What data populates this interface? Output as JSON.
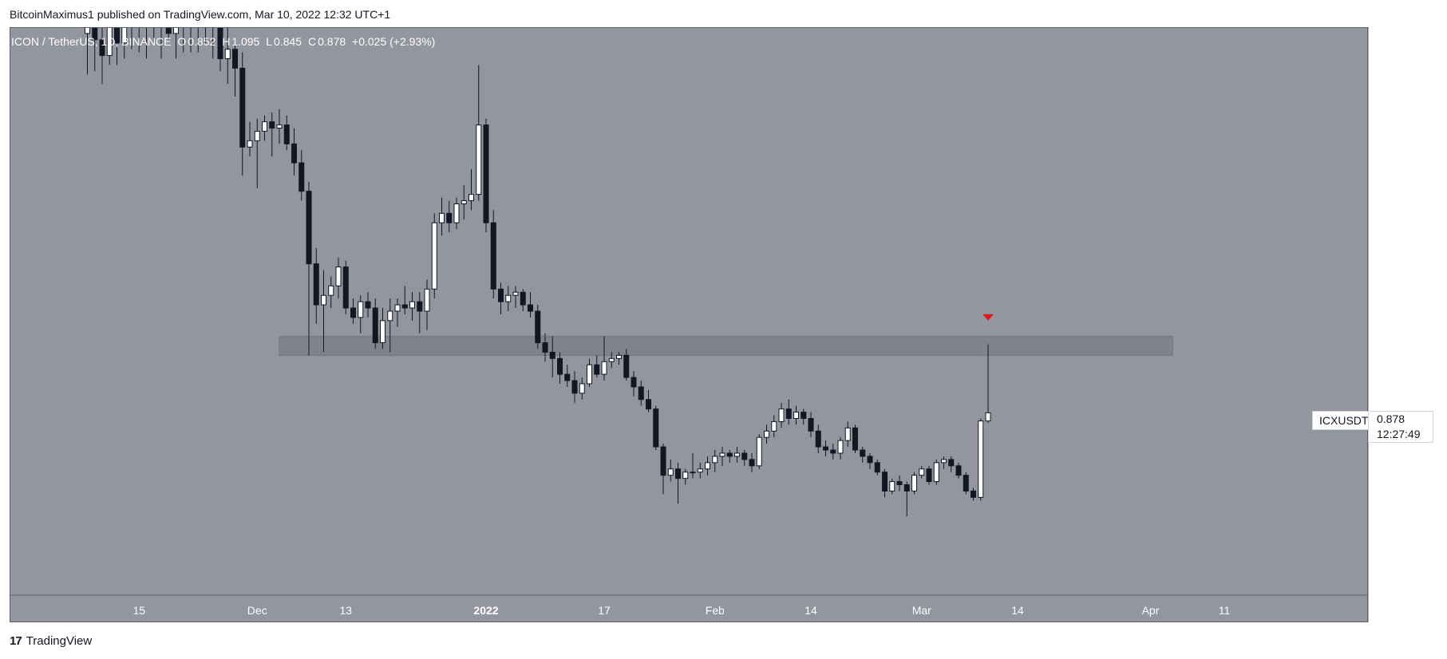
{
  "header": {
    "publisher_line": "BitcoinMaximus1 published on TradingView.com, Mar 10, 2022 12:32 UTC+1"
  },
  "ohlc": {
    "symbol_text": "ICON / TetherUS, 1D, BINANCE",
    "o_label": "O",
    "o": "0.852",
    "h_label": "H",
    "h": "1.095",
    "l_label": "L",
    "l": "0.845",
    "c_label": "C",
    "c": "0.878",
    "change": "+0.025 (+2.93%)"
  },
  "axis": {
    "unit": "USDT"
  },
  "last_price": {
    "symbol": "ICXUSDT",
    "price": "0.878",
    "countdown": "12:27:49"
  },
  "footer": {
    "brand": "TradingView",
    "logo_glyph": "17"
  },
  "colors": {
    "background": "#93959f",
    "up_candle": "#ffffff",
    "down_candle": "#131722",
    "zone": "#808289",
    "arrow": "#e01818"
  },
  "chart_data": {
    "type": "candlestick",
    "title": "ICON / TetherUS, 1D, BINANCE",
    "ylim": [
      0.3,
      2.1
    ],
    "y_ticks": [
      0.4,
      0.5,
      0.6,
      0.7,
      0.8,
      0.9,
      1.0,
      1.1,
      1.2,
      1.3,
      1.4,
      1.5,
      1.6,
      1.7,
      1.8,
      1.9,
      2.0,
      2.1
    ],
    "x_tick_labels": [
      {
        "label": "15",
        "date": "2021-11-15"
      },
      {
        "label": "Dec",
        "date": "2021-12-01"
      },
      {
        "label": "13",
        "date": "2021-12-13"
      },
      {
        "label": "2022",
        "date": "2022-01-01"
      },
      {
        "label": "17",
        "date": "2022-01-17"
      },
      {
        "label": "Feb",
        "date": "2022-02-01"
      },
      {
        "label": "14",
        "date": "2022-02-14"
      },
      {
        "label": "Mar",
        "date": "2022-03-01"
      },
      {
        "label": "14",
        "date": "2022-03-14"
      },
      {
        "label": "Apr",
        "date": "2022-04-01"
      },
      {
        "label": "11",
        "date": "2022-04-11"
      }
    ],
    "resistance_zone": {
      "low": 1.06,
      "high": 1.12,
      "start": "2021-12-04",
      "end": "2022-04-04"
    },
    "markers": [
      {
        "type": "down-arrow",
        "date": "2022-03-10",
        "price": 1.18
      }
    ],
    "candles": [
      {
        "d": "2021-11-08",
        "o": 2.08,
        "h": 2.18,
        "l": 1.95,
        "c": 2.1
      },
      {
        "d": "2021-11-09",
        "o": 2.1,
        "h": 2.16,
        "l": 1.96,
        "c": 2.06
      },
      {
        "d": "2021-11-10",
        "o": 2.06,
        "h": 2.14,
        "l": 1.92,
        "c": 2.01
      },
      {
        "d": "2021-11-11",
        "o": 2.01,
        "h": 2.18,
        "l": 1.98,
        "c": 2.12
      },
      {
        "d": "2021-11-12",
        "o": 2.12,
        "h": 2.16,
        "l": 1.98,
        "c": 2.05
      },
      {
        "d": "2021-11-13",
        "o": 2.05,
        "h": 2.15,
        "l": 2.0,
        "c": 2.11
      },
      {
        "d": "2021-11-14",
        "o": 2.11,
        "h": 2.17,
        "l": 2.03,
        "c": 2.15
      },
      {
        "d": "2021-11-15",
        "o": 2.15,
        "h": 2.19,
        "l": 2.02,
        "c": 2.16
      },
      {
        "d": "2021-11-16",
        "o": 2.16,
        "h": 2.18,
        "l": 2.0,
        "c": 2.17
      },
      {
        "d": "2021-11-17",
        "o": 2.17,
        "h": 2.19,
        "l": 2.05,
        "c": 2.16
      },
      {
        "d": "2021-11-18",
        "o": 2.16,
        "h": 2.18,
        "l": 2.0,
        "c": 2.17
      },
      {
        "d": "2021-11-19",
        "o": 2.17,
        "h": 2.19,
        "l": 2.06,
        "c": 2.08
      },
      {
        "d": "2021-11-20",
        "o": 2.08,
        "h": 2.16,
        "l": 2.0,
        "c": 2.12
      },
      {
        "d": "2021-11-21",
        "o": 2.12,
        "h": 2.18,
        "l": 2.02,
        "c": 2.16
      },
      {
        "d": "2021-11-22",
        "o": 2.16,
        "h": 2.18,
        "l": 2.02,
        "c": 2.16
      },
      {
        "d": "2021-11-23",
        "o": 2.16,
        "h": 2.18,
        "l": 2.02,
        "c": 2.17
      },
      {
        "d": "2021-11-24",
        "o": 2.17,
        "h": 2.19,
        "l": 2.05,
        "c": 2.16
      },
      {
        "d": "2021-11-25",
        "o": 2.16,
        "h": 2.18,
        "l": 2.0,
        "c": 2.1
      },
      {
        "d": "2021-11-26",
        "o": 2.1,
        "h": 2.14,
        "l": 1.96,
        "c": 2.0
      },
      {
        "d": "2021-11-27",
        "o": 2.0,
        "h": 2.1,
        "l": 1.92,
        "c": 2.03
      },
      {
        "d": "2021-11-28",
        "o": 2.03,
        "h": 2.06,
        "l": 1.88,
        "c": 1.97
      },
      {
        "d": "2021-11-29",
        "o": 1.97,
        "h": 2.02,
        "l": 1.63,
        "c": 1.72
      },
      {
        "d": "2021-11-30",
        "o": 1.72,
        "h": 1.8,
        "l": 1.69,
        "c": 1.74
      },
      {
        "d": "2021-12-01",
        "o": 1.74,
        "h": 1.81,
        "l": 1.59,
        "c": 1.77
      },
      {
        "d": "2021-12-02",
        "o": 1.77,
        "h": 1.82,
        "l": 1.74,
        "c": 1.8
      },
      {
        "d": "2021-12-03",
        "o": 1.8,
        "h": 1.83,
        "l": 1.69,
        "c": 1.78
      },
      {
        "d": "2021-12-04",
        "o": 1.78,
        "h": 1.84,
        "l": 1.73,
        "c": 1.79
      },
      {
        "d": "2021-12-05",
        "o": 1.79,
        "h": 1.82,
        "l": 1.71,
        "c": 1.73
      },
      {
        "d": "2021-12-06",
        "o": 1.73,
        "h": 1.78,
        "l": 1.63,
        "c": 1.67
      },
      {
        "d": "2021-12-07",
        "o": 1.67,
        "h": 1.71,
        "l": 1.55,
        "c": 1.58
      },
      {
        "d": "2021-12-08",
        "o": 1.58,
        "h": 1.61,
        "l": 1.06,
        "c": 1.35
      },
      {
        "d": "2021-12-09",
        "o": 1.35,
        "h": 1.4,
        "l": 1.16,
        "c": 1.22
      },
      {
        "d": "2021-12-10",
        "o": 1.22,
        "h": 1.33,
        "l": 1.07,
        "c": 1.25
      },
      {
        "d": "2021-12-11",
        "o": 1.25,
        "h": 1.31,
        "l": 1.21,
        "c": 1.28
      },
      {
        "d": "2021-12-12",
        "o": 1.28,
        "h": 1.37,
        "l": 1.24,
        "c": 1.34
      },
      {
        "d": "2021-12-13",
        "o": 1.34,
        "h": 1.36,
        "l": 1.19,
        "c": 1.21
      },
      {
        "d": "2021-12-14",
        "o": 1.21,
        "h": 1.24,
        "l": 1.16,
        "c": 1.18
      },
      {
        "d": "2021-12-15",
        "o": 1.18,
        "h": 1.25,
        "l": 1.13,
        "c": 1.23
      },
      {
        "d": "2021-12-16",
        "o": 1.23,
        "h": 1.26,
        "l": 1.18,
        "c": 1.21
      },
      {
        "d": "2021-12-17",
        "o": 1.21,
        "h": 1.24,
        "l": 1.08,
        "c": 1.1
      },
      {
        "d": "2021-12-18",
        "o": 1.1,
        "h": 1.21,
        "l": 1.08,
        "c": 1.17
      },
      {
        "d": "2021-12-19",
        "o": 1.17,
        "h": 1.24,
        "l": 1.07,
        "c": 1.2
      },
      {
        "d": "2021-12-20",
        "o": 1.2,
        "h": 1.24,
        "l": 1.15,
        "c": 1.22
      },
      {
        "d": "2021-12-21",
        "o": 1.22,
        "h": 1.28,
        "l": 1.19,
        "c": 1.21
      },
      {
        "d": "2021-12-22",
        "o": 1.21,
        "h": 1.26,
        "l": 1.17,
        "c": 1.23
      },
      {
        "d": "2021-12-23",
        "o": 1.23,
        "h": 1.26,
        "l": 1.13,
        "c": 1.2
      },
      {
        "d": "2021-12-24",
        "o": 1.2,
        "h": 1.3,
        "l": 1.14,
        "c": 1.27
      },
      {
        "d": "2021-12-25",
        "o": 1.27,
        "h": 1.51,
        "l": 1.24,
        "c": 1.48
      },
      {
        "d": "2021-12-26",
        "o": 1.48,
        "h": 1.56,
        "l": 1.44,
        "c": 1.51
      },
      {
        "d": "2021-12-27",
        "o": 1.51,
        "h": 1.55,
        "l": 1.45,
        "c": 1.48
      },
      {
        "d": "2021-12-28",
        "o": 1.48,
        "h": 1.56,
        "l": 1.46,
        "c": 1.54
      },
      {
        "d": "2021-12-29",
        "o": 1.54,
        "h": 1.6,
        "l": 1.49,
        "c": 1.55
      },
      {
        "d": "2021-12-30",
        "o": 1.55,
        "h": 1.65,
        "l": 1.52,
        "c": 1.57
      },
      {
        "d": "2021-12-31",
        "o": 1.57,
        "h": 1.98,
        "l": 1.55,
        "c": 1.79
      },
      {
        "d": "2022-01-01",
        "o": 1.79,
        "h": 1.81,
        "l": 1.45,
        "c": 1.48
      },
      {
        "d": "2022-01-02",
        "o": 1.48,
        "h": 1.52,
        "l": 1.24,
        "c": 1.27
      },
      {
        "d": "2022-01-03",
        "o": 1.27,
        "h": 1.29,
        "l": 1.19,
        "c": 1.23
      },
      {
        "d": "2022-01-04",
        "o": 1.23,
        "h": 1.28,
        "l": 1.2,
        "c": 1.25
      },
      {
        "d": "2022-01-05",
        "o": 1.25,
        "h": 1.28,
        "l": 1.21,
        "c": 1.26
      },
      {
        "d": "2022-01-06",
        "o": 1.26,
        "h": 1.27,
        "l": 1.2,
        "c": 1.22
      },
      {
        "d": "2022-01-07",
        "o": 1.22,
        "h": 1.26,
        "l": 1.18,
        "c": 1.2
      },
      {
        "d": "2022-01-08",
        "o": 1.2,
        "h": 1.22,
        "l": 1.08,
        "c": 1.1
      },
      {
        "d": "2022-01-09",
        "o": 1.1,
        "h": 1.13,
        "l": 1.04,
        "c": 1.07
      },
      {
        "d": "2022-01-10",
        "o": 1.07,
        "h": 1.12,
        "l": 0.99,
        "c": 1.05
      },
      {
        "d": "2022-01-11",
        "o": 1.05,
        "h": 1.07,
        "l": 0.97,
        "c": 1.0
      },
      {
        "d": "2022-01-12",
        "o": 1.0,
        "h": 1.03,
        "l": 0.96,
        "c": 0.98
      },
      {
        "d": "2022-01-13",
        "o": 0.98,
        "h": 1.01,
        "l": 0.91,
        "c": 0.94
      },
      {
        "d": "2022-01-14",
        "o": 0.94,
        "h": 0.99,
        "l": 0.92,
        "c": 0.97
      },
      {
        "d": "2022-01-15",
        "o": 0.97,
        "h": 1.05,
        "l": 0.96,
        "c": 1.03
      },
      {
        "d": "2022-01-16",
        "o": 1.03,
        "h": 1.06,
        "l": 0.99,
        "c": 1.0
      },
      {
        "d": "2022-01-17",
        "o": 1.0,
        "h": 1.12,
        "l": 0.98,
        "c": 1.04
      },
      {
        "d": "2022-01-18",
        "o": 1.04,
        "h": 1.07,
        "l": 1.02,
        "c": 1.05
      },
      {
        "d": "2022-01-19",
        "o": 1.05,
        "h": 1.07,
        "l": 1.03,
        "c": 1.06
      },
      {
        "d": "2022-01-20",
        "o": 1.06,
        "h": 1.08,
        "l": 0.98,
        "c": 0.99
      },
      {
        "d": "2022-01-21",
        "o": 0.99,
        "h": 1.01,
        "l": 0.93,
        "c": 0.96
      },
      {
        "d": "2022-01-22",
        "o": 0.96,
        "h": 0.98,
        "l": 0.9,
        "c": 0.92
      },
      {
        "d": "2022-01-23",
        "o": 0.92,
        "h": 0.95,
        "l": 0.88,
        "c": 0.89
      },
      {
        "d": "2022-01-24",
        "o": 0.89,
        "h": 0.9,
        "l": 0.76,
        "c": 0.77
      },
      {
        "d": "2022-01-25",
        "o": 0.77,
        "h": 0.78,
        "l": 0.62,
        "c": 0.68
      },
      {
        "d": "2022-01-26",
        "o": 0.68,
        "h": 0.73,
        "l": 0.66,
        "c": 0.7
      },
      {
        "d": "2022-01-27",
        "o": 0.7,
        "h": 0.72,
        "l": 0.59,
        "c": 0.67
      },
      {
        "d": "2022-01-28",
        "o": 0.67,
        "h": 0.7,
        "l": 0.65,
        "c": 0.69
      },
      {
        "d": "2022-01-29",
        "o": 0.69,
        "h": 0.75,
        "l": 0.67,
        "c": 0.69
      },
      {
        "d": "2022-01-30",
        "o": 0.69,
        "h": 0.72,
        "l": 0.67,
        "c": 0.7
      },
      {
        "d": "2022-01-31",
        "o": 0.7,
        "h": 0.74,
        "l": 0.68,
        "c": 0.72
      },
      {
        "d": "2022-02-01",
        "o": 0.72,
        "h": 0.76,
        "l": 0.69,
        "c": 0.74
      },
      {
        "d": "2022-02-02",
        "o": 0.74,
        "h": 0.77,
        "l": 0.71,
        "c": 0.75
      },
      {
        "d": "2022-02-03",
        "o": 0.75,
        "h": 0.76,
        "l": 0.72,
        "c": 0.74
      },
      {
        "d": "2022-02-04",
        "o": 0.74,
        "h": 0.77,
        "l": 0.72,
        "c": 0.75
      },
      {
        "d": "2022-02-05",
        "o": 0.75,
        "h": 0.76,
        "l": 0.71,
        "c": 0.73
      },
      {
        "d": "2022-02-06",
        "o": 0.73,
        "h": 0.75,
        "l": 0.69,
        "c": 0.71
      },
      {
        "d": "2022-02-07",
        "o": 0.71,
        "h": 0.81,
        "l": 0.7,
        "c": 0.8
      },
      {
        "d": "2022-02-08",
        "o": 0.8,
        "h": 0.84,
        "l": 0.78,
        "c": 0.82
      },
      {
        "d": "2022-02-09",
        "o": 0.82,
        "h": 0.87,
        "l": 0.8,
        "c": 0.85
      },
      {
        "d": "2022-02-10",
        "o": 0.85,
        "h": 0.91,
        "l": 0.83,
        "c": 0.89
      },
      {
        "d": "2022-02-11",
        "o": 0.89,
        "h": 0.92,
        "l": 0.84,
        "c": 0.86
      },
      {
        "d": "2022-02-12",
        "o": 0.86,
        "h": 0.9,
        "l": 0.84,
        "c": 0.88
      },
      {
        "d": "2022-02-13",
        "o": 0.88,
        "h": 0.89,
        "l": 0.84,
        "c": 0.86
      },
      {
        "d": "2022-02-14",
        "o": 0.86,
        "h": 0.88,
        "l": 0.8,
        "c": 0.82
      },
      {
        "d": "2022-02-15",
        "o": 0.82,
        "h": 0.84,
        "l": 0.75,
        "c": 0.77
      },
      {
        "d": "2022-02-16",
        "o": 0.77,
        "h": 0.79,
        "l": 0.74,
        "c": 0.76
      },
      {
        "d": "2022-02-17",
        "o": 0.76,
        "h": 0.78,
        "l": 0.73,
        "c": 0.75
      },
      {
        "d": "2022-02-18",
        "o": 0.75,
        "h": 0.8,
        "l": 0.73,
        "c": 0.79
      },
      {
        "d": "2022-02-19",
        "o": 0.79,
        "h": 0.85,
        "l": 0.77,
        "c": 0.83
      },
      {
        "d": "2022-02-20",
        "o": 0.83,
        "h": 0.84,
        "l": 0.75,
        "c": 0.76
      },
      {
        "d": "2022-02-21",
        "o": 0.76,
        "h": 0.77,
        "l": 0.72,
        "c": 0.74
      },
      {
        "d": "2022-02-22",
        "o": 0.74,
        "h": 0.75,
        "l": 0.7,
        "c": 0.72
      },
      {
        "d": "2022-02-23",
        "o": 0.72,
        "h": 0.73,
        "l": 0.68,
        "c": 0.69
      },
      {
        "d": "2022-02-24",
        "o": 0.69,
        "h": 0.7,
        "l": 0.61,
        "c": 0.63
      },
      {
        "d": "2022-02-25",
        "o": 0.63,
        "h": 0.67,
        "l": 0.62,
        "c": 0.66
      },
      {
        "d": "2022-02-26",
        "o": 0.66,
        "h": 0.68,
        "l": 0.63,
        "c": 0.65
      },
      {
        "d": "2022-02-27",
        "o": 0.65,
        "h": 0.66,
        "l": 0.55,
        "c": 0.63
      },
      {
        "d": "2022-02-28",
        "o": 0.63,
        "h": 0.69,
        "l": 0.62,
        "c": 0.68
      },
      {
        "d": "2022-03-01",
        "o": 0.68,
        "h": 0.71,
        "l": 0.67,
        "c": 0.7
      },
      {
        "d": "2022-03-02",
        "o": 0.7,
        "h": 0.71,
        "l": 0.65,
        "c": 0.66
      },
      {
        "d": "2022-03-03",
        "o": 0.66,
        "h": 0.73,
        "l": 0.65,
        "c": 0.72
      },
      {
        "d": "2022-03-04",
        "o": 0.72,
        "h": 0.74,
        "l": 0.7,
        "c": 0.73
      },
      {
        "d": "2022-03-05",
        "o": 0.73,
        "h": 0.74,
        "l": 0.69,
        "c": 0.71
      },
      {
        "d": "2022-03-06",
        "o": 0.71,
        "h": 0.72,
        "l": 0.67,
        "c": 0.68
      },
      {
        "d": "2022-03-07",
        "o": 0.68,
        "h": 0.69,
        "l": 0.62,
        "c": 0.63
      },
      {
        "d": "2022-03-08",
        "o": 0.63,
        "h": 0.64,
        "l": 0.6,
        "c": 0.61
      },
      {
        "d": "2022-03-09",
        "o": 0.61,
        "h": 0.86,
        "l": 0.6,
        "c": 0.852
      },
      {
        "d": "2022-03-10",
        "o": 0.852,
        "h": 1.095,
        "l": 0.845,
        "c": 0.878
      }
    ]
  }
}
